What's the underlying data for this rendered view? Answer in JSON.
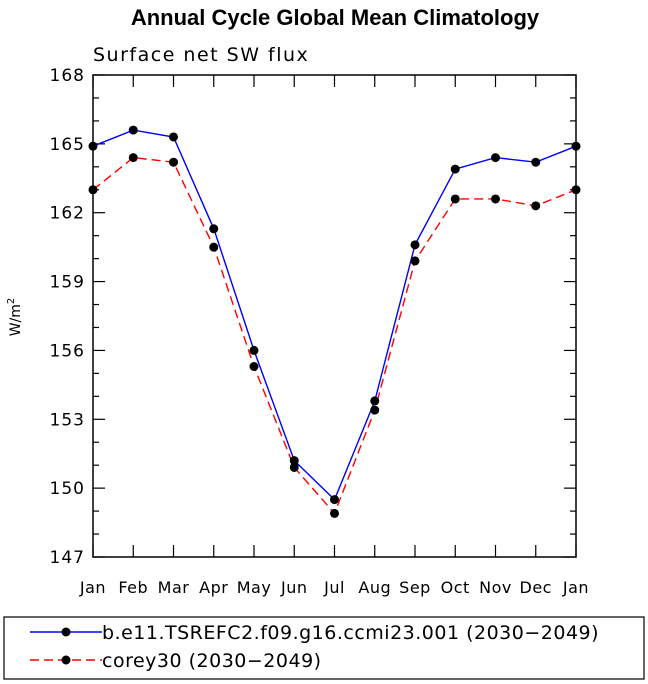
{
  "chart_data": {
    "type": "line",
    "title": "Annual Cycle Global Mean Climatology",
    "subtitle": "Surface net SW flux",
    "ylabel": "W/m",
    "ylabel_superscript": "2",
    "xlabel": "",
    "categories": [
      "Jan",
      "Feb",
      "Mar",
      "Apr",
      "May",
      "Jun",
      "Jul",
      "Aug",
      "Sep",
      "Oct",
      "Nov",
      "Dec",
      "Jan"
    ],
    "ylim": [
      147,
      168
    ],
    "yticks": [
      147,
      150,
      153,
      156,
      159,
      162,
      165,
      168
    ],
    "grid": false,
    "legend_placement": "bottom",
    "series": [
      {
        "name": "b.e11.TSREFC2.f09.g16.ccmi23.001 (2030−2049)",
        "color": "#0000ff",
        "dash": "solid",
        "values": [
          164.9,
          165.6,
          165.3,
          161.3,
          156.0,
          151.2,
          149.5,
          153.8,
          160.6,
          163.9,
          164.4,
          164.2,
          164.9
        ]
      },
      {
        "name": "corey30 (2030−2049)",
        "color": "#ff0000",
        "dash": "dashed",
        "values": [
          163.0,
          164.4,
          164.2,
          160.5,
          155.3,
          150.9,
          148.9,
          153.4,
          159.9,
          162.6,
          162.6,
          162.3,
          163.0
        ]
      }
    ]
  }
}
